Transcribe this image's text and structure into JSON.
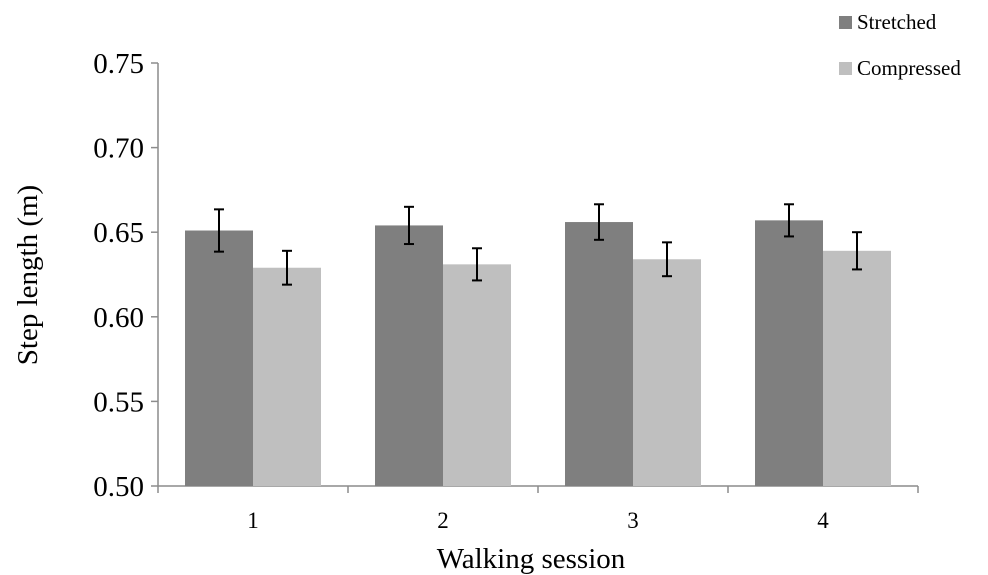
{
  "chart_data": {
    "type": "bar",
    "categories": [
      "1",
      "2",
      "3",
      "4"
    ],
    "series": [
      {
        "name": "Stretched",
        "color": "#7f7f7f",
        "values": [
          0.651,
          0.654,
          0.656,
          0.657
        ],
        "errors": [
          0.0125,
          0.011,
          0.0105,
          0.0095
        ]
      },
      {
        "name": "Compressed",
        "color": "#bfbfbf",
        "values": [
          0.629,
          0.631,
          0.634,
          0.639
        ],
        "errors": [
          0.01,
          0.0095,
          0.01,
          0.011
        ]
      }
    ],
    "xlabel": "Walking session",
    "ylabel": "Step length (m)",
    "ylim": [
      0.5,
      0.75
    ],
    "yticks": [
      "0.50",
      "0.55",
      "0.60",
      "0.65",
      "0.70",
      "0.75"
    ],
    "grid": false,
    "legend_position": "top-right"
  }
}
